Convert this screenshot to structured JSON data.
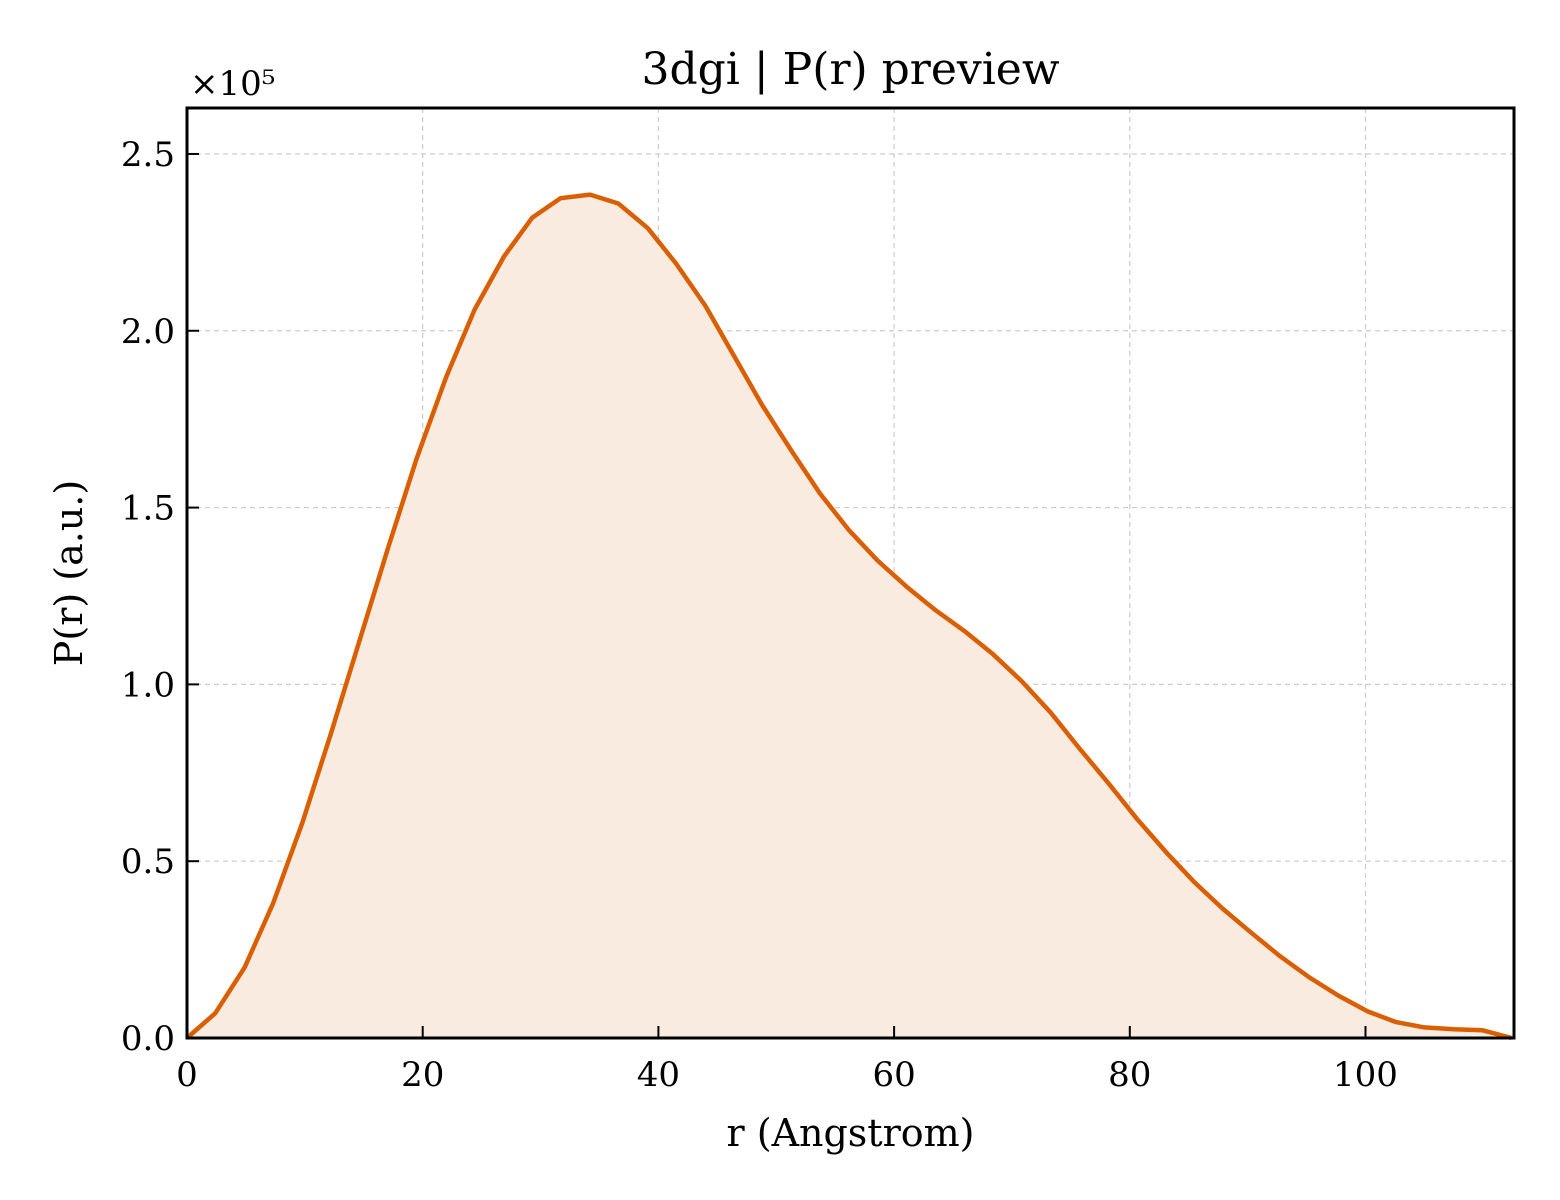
{
  "chart_data": {
    "type": "area",
    "title": "3dgi | P(r) preview",
    "xlabel": "r (Angstrom)",
    "ylabel": "P(r) (a.u.)",
    "y_offset_label": "×10⁵",
    "xlim": [
      0,
      112.6
    ],
    "ylim": [
      0,
      2.63
    ],
    "x_ticks": [
      0,
      20,
      40,
      60,
      80,
      100
    ],
    "x_tick_labels": [
      "0",
      "20",
      "40",
      "60",
      "80",
      "100"
    ],
    "y_ticks": [
      0,
      0.5,
      1.0,
      1.5,
      2.0,
      2.5
    ],
    "y_tick_labels": [
      "0.0",
      "0.5",
      "1.0",
      "1.5",
      "2.0",
      "2.5"
    ],
    "grid": true,
    "line_color": "#d95f02",
    "fill_color": "#f9ebe0",
    "series": [
      {
        "x": [
          0,
          2.4,
          4.9,
          7.3,
          9.8,
          12.2,
          14.6,
          17.1,
          19.5,
          22.0,
          24.4,
          26.9,
          29.3,
          31.7,
          34.2,
          36.6,
          39.1,
          41.5,
          44.0,
          46.4,
          48.8,
          51.3,
          53.7,
          56.2,
          58.6,
          61.1,
          63.5,
          66.0,
          68.4,
          70.8,
          73.3,
          75.7,
          78.2,
          80.6,
          83.1,
          85.5,
          87.9,
          90.4,
          92.8,
          95.3,
          97.7,
          100.2,
          102.6,
          105.0,
          107.5,
          109.9,
          112.4
        ],
        "y": [
          0.0,
          0.07,
          0.2,
          0.38,
          0.61,
          0.86,
          1.12,
          1.39,
          1.64,
          1.87,
          2.06,
          2.21,
          2.32,
          2.375,
          2.385,
          2.36,
          2.29,
          2.19,
          2.07,
          1.93,
          1.79,
          1.66,
          1.54,
          1.435,
          1.35,
          1.275,
          1.21,
          1.15,
          1.085,
          1.01,
          0.92,
          0.82,
          0.72,
          0.62,
          0.525,
          0.44,
          0.365,
          0.295,
          0.23,
          0.17,
          0.12,
          0.075,
          0.045,
          0.03,
          0.025,
          0.022,
          0.0
        ]
      }
    ]
  }
}
